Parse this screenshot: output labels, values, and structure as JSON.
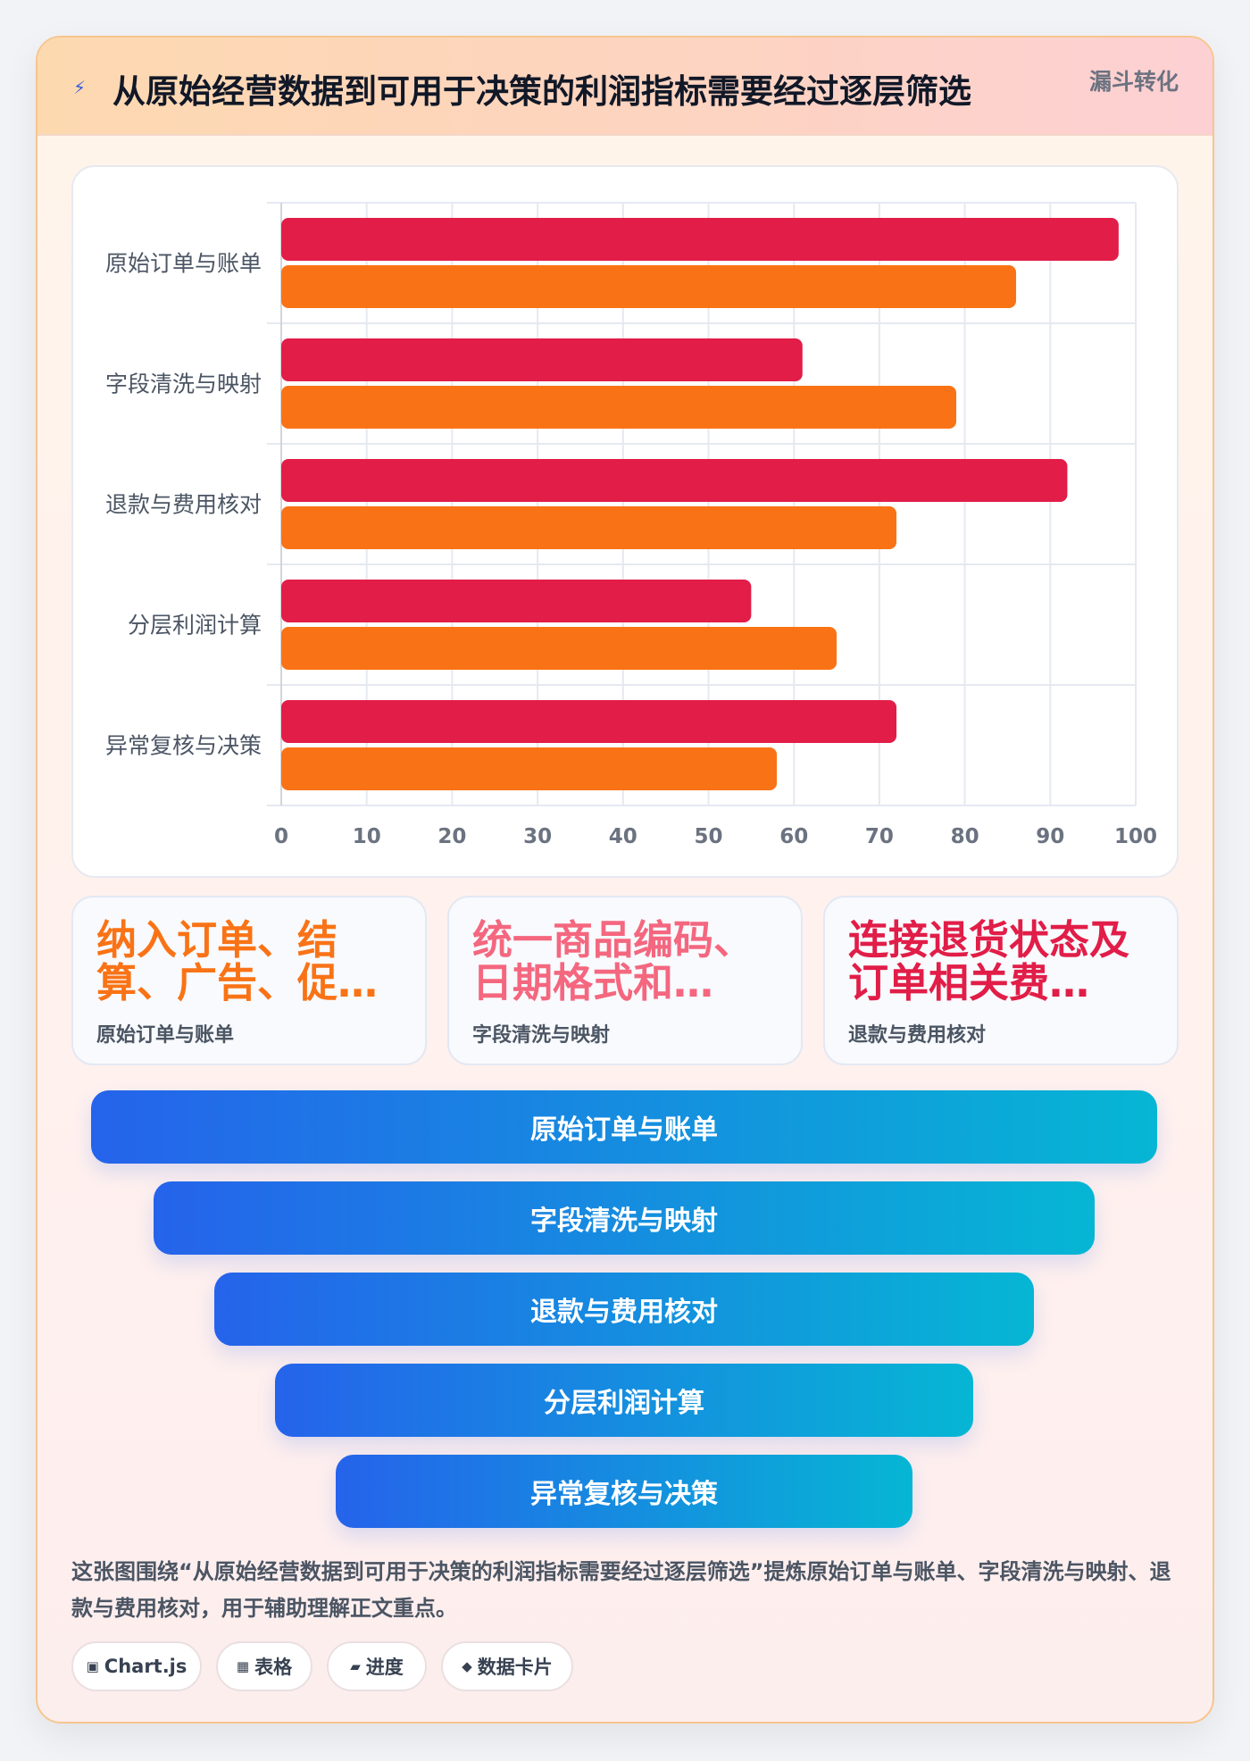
{
  "header": {
    "icon": "lightning-icon",
    "title": "从原始经营数据到可用于决策的利润指标需要经过逐层筛选",
    "tag": "漏斗转化"
  },
  "chart_data": {
    "type": "bar",
    "orientation": "horizontal",
    "categories": [
      "原始订单与账单",
      "字段清洗与映射",
      "退款与费用核对",
      "分层利润计算",
      "异常复核与决策"
    ],
    "series": [
      {
        "values": [
          98,
          61,
          92,
          55,
          72
        ],
        "color": "#e11d48"
      },
      {
        "values": [
          86,
          79,
          72,
          65,
          58
        ],
        "color": "#f97316"
      }
    ],
    "xlim": [
      0,
      100
    ],
    "xticks": [
      0,
      10,
      20,
      30,
      40,
      50,
      60,
      70,
      80,
      90,
      100
    ],
    "grid": true,
    "title": "",
    "xlabel": "",
    "ylabel": ""
  },
  "cards": [
    {
      "value": "纳入订单、结算、广告、促…",
      "label": "原始订单与账单",
      "color": "#f97316"
    },
    {
      "value": "统一商品编码、日期格式和…",
      "label": "字段清洗与映射",
      "color": "#f4677f"
    },
    {
      "value": "连接退货状态及订单相关费…",
      "label": "退款与费用核对",
      "color": "#e11d48"
    }
  ],
  "funnel": [
    "原始订单与账单",
    "字段清洗与映射",
    "退款与费用核对",
    "分层利润计算",
    "异常复核与决策"
  ],
  "caption": "这张图围绕“从原始经营数据到可用于决策的利润指标需要经过逐层筛选”提炼原始订单与账单、字段清洗与映射、退款与费用核对，用于辅助理解正文重点。",
  "chips": [
    {
      "icon": "▣",
      "label": "Chart.js"
    },
    {
      "icon": "▦",
      "label": "表格"
    },
    {
      "icon": "▰",
      "label": "进度"
    },
    {
      "icon": "◆",
      "label": "数据卡片"
    }
  ]
}
